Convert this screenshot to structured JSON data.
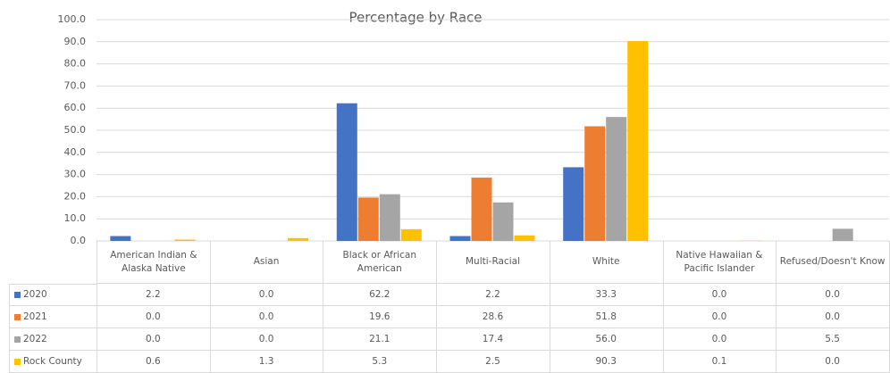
{
  "chart_data": {
    "type": "bar",
    "title": "Percentage by Race",
    "categories": [
      "American Indian & Alaska Native",
      "Asian",
      "Black or African American",
      "Multi-Racial",
      "White",
      "Native Hawaiian & Pacific Islander",
      "Refused/Doesn't Know"
    ],
    "series": [
      {
        "name": "2020",
        "color": "#4472c4",
        "values": [
          2.2,
          0.0,
          62.2,
          2.2,
          33.3,
          0.0,
          0.0
        ],
        "value_labels": [
          "2.2",
          "0.0",
          "62.2",
          "2.2",
          "33.3",
          "0.0",
          "0.0"
        ]
      },
      {
        "name": "2021",
        "color": "#ed7d31",
        "values": [
          0.0,
          0.0,
          19.6,
          28.6,
          51.8,
          0.0,
          0.0
        ],
        "value_labels": [
          "0.0",
          "0.0",
          "19.6",
          "28.6",
          "51.8",
          "0.0",
          "0.0"
        ]
      },
      {
        "name": "2022",
        "color": "#a5a5a5",
        "values": [
          0.0,
          0.0,
          21.1,
          17.4,
          56.0,
          0.0,
          5.5
        ],
        "value_labels": [
          "0.0",
          "0.0",
          "21.1",
          "17.4",
          "56.0",
          "0.0",
          "5.5"
        ]
      },
      {
        "name": "Rock County",
        "color": "#ffc000",
        "values": [
          0.6,
          1.3,
          5.3,
          2.5,
          90.3,
          0.1,
          0.0
        ],
        "value_labels": [
          "0.6",
          "1.3",
          "5.3",
          "2.5",
          "90.3",
          "0.1",
          "0.0"
        ]
      }
    ],
    "ylim": [
      0,
      100
    ],
    "yticks": [
      {
        "value": 0,
        "label": "0.0"
      },
      {
        "value": 10,
        "label": "10.0"
      },
      {
        "value": 20,
        "label": "20.0"
      },
      {
        "value": 30,
        "label": "30.0"
      },
      {
        "value": 40,
        "label": "40.0"
      },
      {
        "value": 50,
        "label": "50.0"
      },
      {
        "value": 60,
        "label": "60.0"
      },
      {
        "value": 70,
        "label": "70.0"
      },
      {
        "value": 80,
        "label": "80.0"
      },
      {
        "value": 90,
        "label": "90.0"
      },
      {
        "value": 100,
        "label": "100.0"
      }
    ],
    "grid": true
  }
}
